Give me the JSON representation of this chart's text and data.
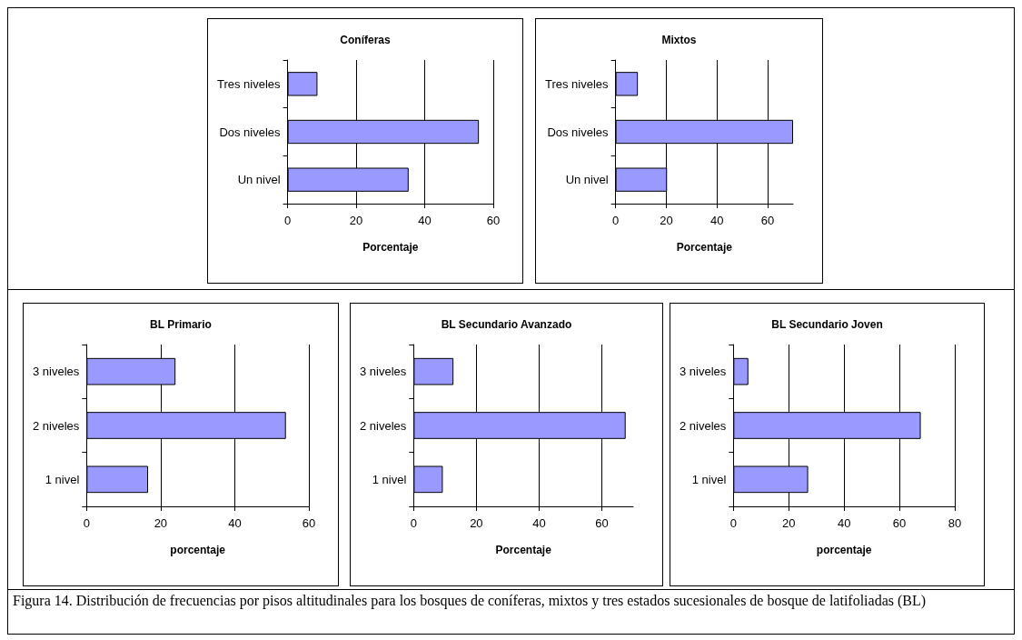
{
  "chart_data": [
    {
      "type": "bar",
      "orientation": "horizontal",
      "title": "Coníferas",
      "xlabel": "Porcentaje",
      "categories": [
        "Tres niveles",
        "Dos niveles",
        "Un nivel"
      ],
      "values": [
        8.7,
        55.8,
        35.3
      ],
      "color": "#9999ff",
      "xlim": [
        0,
        60
      ],
      "xticks": [
        0,
        20,
        40,
        60
      ],
      "grid": "x"
    },
    {
      "type": "bar",
      "orientation": "horizontal",
      "title": "Mixtos",
      "xlabel": "Porcentaje",
      "categories": [
        "Tres niveles",
        "Dos niveles",
        "Un nivel"
      ],
      "values": [
        8.8,
        70,
        20.3
      ],
      "color": "#9999ff",
      "xlim": [
        0,
        70
      ],
      "xticks": [
        0,
        20,
        40,
        60
      ],
      "grid": "x"
    },
    {
      "type": "bar",
      "orientation": "horizontal",
      "title": "BL Primario",
      "xlabel": "porcentaje",
      "categories": [
        "3 niveles",
        "2 niveles",
        "1 nivel"
      ],
      "values": [
        24,
        53.8,
        16.6
      ],
      "color": "#9999ff",
      "xlim": [
        0,
        60
      ],
      "xticks": [
        0,
        20,
        40,
        60
      ],
      "grid": "x"
    },
    {
      "type": "bar",
      "orientation": "horizontal",
      "title": "BL Secundario Avanzado",
      "xlabel": "Porcentaje",
      "categories": [
        "3 niveles",
        "2 niveles",
        "1 nivel"
      ],
      "values": [
        12.7,
        67.6,
        9.3
      ],
      "color": "#9999ff",
      "xlim": [
        0,
        70
      ],
      "xticks": [
        0,
        20,
        40,
        60
      ],
      "grid": "x"
    },
    {
      "type": "bar",
      "orientation": "horizontal",
      "title": "BL Secundario Joven",
      "xlabel": "porcentaje",
      "categories": [
        "3 niveles",
        "2 niveles",
        "1 nivel"
      ],
      "values": [
        5.4,
        67.7,
        27
      ],
      "color": "#9999ff",
      "xlim": [
        0,
        80
      ],
      "xticks": [
        0,
        20,
        40,
        60,
        80
      ],
      "grid": "x",
      "annotations": [
        "Figura 14. Distribución de frecuencias por pisos altitudinales para los bosques de coníferas, mixtos y tres estados sucesionales de bosque de latifoliadas (BL)"
      ]
    }
  ]
}
